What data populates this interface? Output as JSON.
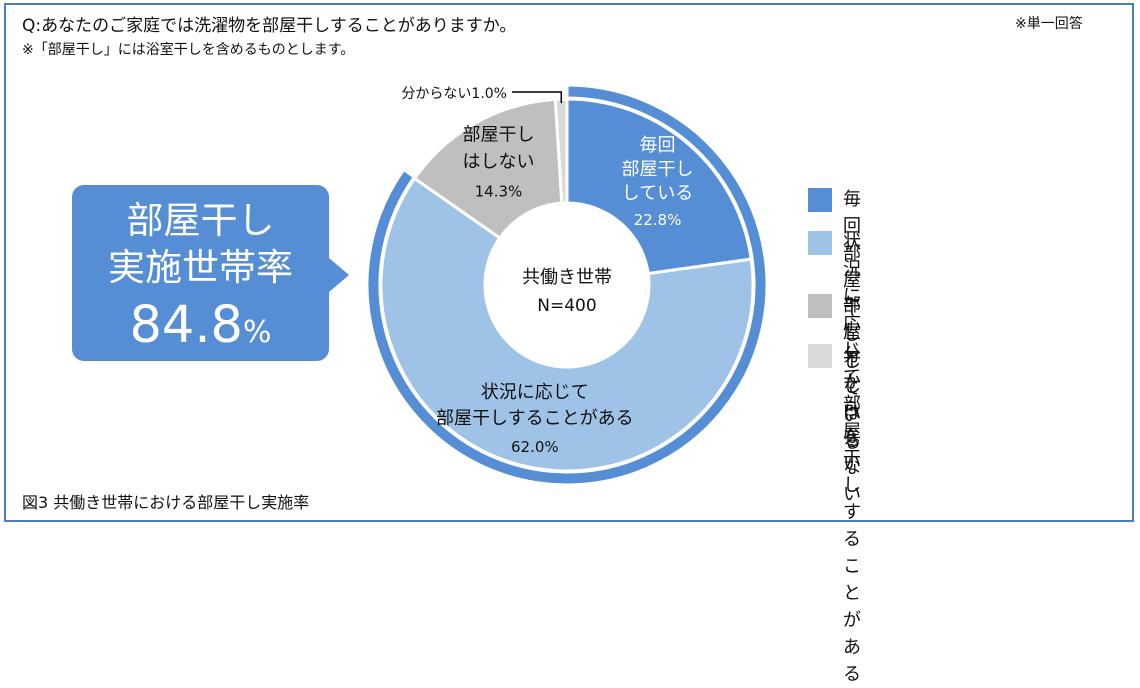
{
  "header": {
    "question": "Q:あなたのご家庭では洗濯物を部屋干しすることがありますか。",
    "note": "※「部屋干し」には浴室干しを含めるものとします。",
    "answer_type": "※単一回答"
  },
  "callout": {
    "title_line1": "部屋干し",
    "title_line2": "実施世帯率",
    "value": "84.8",
    "unit": "%"
  },
  "figure_caption": "図3 共働き世帯における部屋干し実施率",
  "chart_data": {
    "type": "pie",
    "style": "donut",
    "center_label": "共働き世帯",
    "sample_size": "N=400",
    "slices": [
      {
        "name": "毎回部屋干ししている",
        "label_lines": [
          "毎回",
          "部屋干し",
          "している"
        ],
        "value": 22.8,
        "value_label": "22.8%",
        "color": "#558ed5",
        "label_color": "#ffffff"
      },
      {
        "name": "状況に応じて部屋干しすることがある",
        "label_lines": [
          "状況に応じて",
          "部屋干しすることがある"
        ],
        "value": 62.0,
        "value_label": "62.0%",
        "color": "#9fc3e7",
        "label_color": "#111111"
      },
      {
        "name": "部屋干しはしない",
        "label_lines": [
          "部屋干し",
          "はしない"
        ],
        "value": 14.3,
        "value_label": "14.3%",
        "color": "#bfbfbf",
        "label_color": "#111111"
      },
      {
        "name": "分からない",
        "label_lines": [],
        "value": 1.0,
        "value_label": "分からない1.0%",
        "color": "#d9d9d9",
        "label_color": "#111111"
      }
    ],
    "outer_ring": {
      "value": 84.8,
      "color": "#558ed5"
    },
    "legend": [
      {
        "label": "毎回部屋干ししている",
        "color": "#558ed5"
      },
      {
        "label": "状況に応じて\n部屋干しすることがある",
        "color": "#9fc3e7"
      },
      {
        "label": "部屋干しはしない",
        "color": "#bfbfbf"
      },
      {
        "label": "分からない",
        "color": "#d9d9d9"
      }
    ],
    "legend_position": "right"
  }
}
